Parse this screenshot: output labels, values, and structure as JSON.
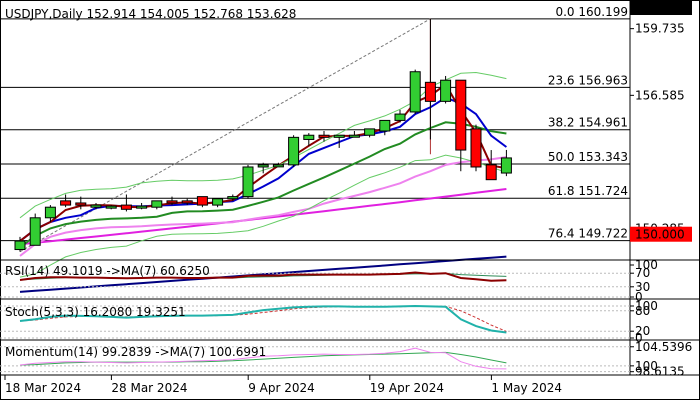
{
  "chart_data": {
    "type": "candlestick",
    "title": "USDJPY,Daily  152.914 154.005 152.768 153.628",
    "instrument": "USDJPY",
    "timeframe": "Daily",
    "last_ohlc": {
      "open": 152.914,
      "high": 154.005,
      "low": 152.768,
      "close": 153.628
    },
    "price_axis": {
      "range": [
        148.9,
        160.9
      ],
      "ticks": [
        "159.735",
        "156.585",
        "150.285"
      ]
    },
    "last_price_label": "153.628",
    "marked_level_label": "150.000",
    "dates": [
      "18 Mar 2024",
      "28 Mar 2024",
      "9 Apr 2024",
      "19 Apr 2024",
      "1 May 2024"
    ],
    "candles": [
      {
        "o": 149.3,
        "h": 149.9,
        "l": 149.2,
        "c": 149.7
      },
      {
        "o": 149.5,
        "h": 151.0,
        "l": 149.5,
        "c": 150.8
      },
      {
        "o": 150.8,
        "h": 151.4,
        "l": 150.6,
        "c": 151.3
      },
      {
        "o": 151.6,
        "h": 151.9,
        "l": 151.3,
        "c": 151.4
      },
      {
        "o": 151.5,
        "h": 151.8,
        "l": 151.2,
        "c": 151.4
      },
      {
        "o": 151.3,
        "h": 151.5,
        "l": 151.2,
        "c": 151.4
      },
      {
        "o": 151.3,
        "h": 151.4,
        "l": 151.2,
        "c": 151.35
      },
      {
        "o": 151.4,
        "h": 151.9,
        "l": 151.1,
        "c": 151.2
      },
      {
        "o": 151.3,
        "h": 151.5,
        "l": 151.2,
        "c": 151.35
      },
      {
        "o": 151.3,
        "h": 151.6,
        "l": 151.2,
        "c": 151.6
      },
      {
        "o": 151.6,
        "h": 151.8,
        "l": 151.4,
        "c": 151.5
      },
      {
        "o": 151.6,
        "h": 151.7,
        "l": 151.4,
        "c": 151.5
      },
      {
        "o": 151.8,
        "h": 151.8,
        "l": 151.3,
        "c": 151.4
      },
      {
        "o": 151.4,
        "h": 151.7,
        "l": 151.3,
        "c": 151.7
      },
      {
        "o": 151.7,
        "h": 151.9,
        "l": 151.6,
        "c": 151.8
      },
      {
        "o": 151.8,
        "h": 153.3,
        "l": 151.7,
        "c": 153.2
      },
      {
        "o": 153.2,
        "h": 153.4,
        "l": 152.9,
        "c": 153.3
      },
      {
        "o": 153.3,
        "h": 153.4,
        "l": 153.2,
        "c": 153.3
      },
      {
        "o": 153.3,
        "h": 154.7,
        "l": 153.2,
        "c": 154.6
      },
      {
        "o": 154.5,
        "h": 154.8,
        "l": 154.2,
        "c": 154.7
      },
      {
        "o": 154.7,
        "h": 154.9,
        "l": 154.4,
        "c": 154.6
      },
      {
        "o": 154.6,
        "h": 154.7,
        "l": 154.1,
        "c": 154.7
      },
      {
        "o": 154.7,
        "h": 154.9,
        "l": 154.6,
        "c": 154.7
      },
      {
        "o": 154.7,
        "h": 155.0,
        "l": 154.6,
        "c": 155.0
      },
      {
        "o": 154.9,
        "h": 155.3,
        "l": 154.7,
        "c": 155.4
      },
      {
        "o": 155.4,
        "h": 155.9,
        "l": 155.3,
        "c": 155.7
      },
      {
        "o": 155.8,
        "h": 157.8,
        "l": 155.7,
        "c": 157.7
      },
      {
        "o": 157.2,
        "h": 160.2,
        "l": 154.5,
        "c": 156.3
      },
      {
        "o": 156.3,
        "h": 157.5,
        "l": 156.2,
        "c": 157.3
      },
      {
        "o": 157.3,
        "h": 157.2,
        "l": 153.0,
        "c": 154.0
      },
      {
        "o": 155.0,
        "h": 155.2,
        "l": 153.0,
        "c": 153.2
      },
      {
        "o": 153.3,
        "h": 154.0,
        "l": 152.7,
        "c": 152.6
      },
      {
        "o": 152.914,
        "h": 154.005,
        "l": 152.768,
        "c": 153.628
      }
    ],
    "fibonacci": [
      {
        "label": "0.0 160.199",
        "level": 160.199
      },
      {
        "label": "23.6 156.963",
        "level": 156.963
      },
      {
        "label": "38.2 154.961",
        "level": 154.961
      },
      {
        "label": "50.0 153.343",
        "level": 153.343
      },
      {
        "label": "61.8 151.724",
        "level": 151.724
      },
      {
        "label": "76.4 149.722",
        "level": 149.722
      }
    ],
    "colors": {
      "bull": "#32cd32",
      "bear": "#ff0000",
      "ma_dark_red": "#8b0000",
      "ma_blue": "#0000cd",
      "ma_green": "#228b22",
      "ma_pink": "#ee82ee",
      "ma_magenta": "#e020e0",
      "ma_navy": "#000080",
      "bollinger": "#66cc66",
      "fib_line": "#000000",
      "last_label_bg": "#000000",
      "marked_level_bg": "#ff0000"
    },
    "panels": [
      {
        "name": "RSI",
        "label": "RSI(14) 49.1019  ->MA(7) 60.6250",
        "ticks": [
          "100",
          "70",
          "30",
          "0"
        ],
        "range": [
          0,
          100
        ],
        "rsi": [
          50,
          56,
          58,
          58,
          57,
          57,
          56,
          55,
          56,
          57,
          57,
          56,
          56,
          57,
          57,
          62,
          63,
          63,
          66,
          66,
          66,
          66,
          66,
          66,
          67,
          68,
          72,
          68,
          70,
          56,
          52,
          48,
          49.1019
        ],
        "ma": [
          50,
          53,
          55,
          57,
          57,
          57,
          57,
          56,
          56,
          56,
          56,
          56,
          56,
          56,
          56,
          58,
          59,
          60,
          62,
          63,
          64,
          65,
          65,
          66,
          66,
          67,
          68,
          68,
          69,
          66,
          64,
          62,
          60.625
        ]
      },
      {
        "name": "Stoch",
        "label": "Stoch(5,3,3) 16.2080 19.3251",
        "ticks": [
          "100",
          "80",
          "20",
          "0"
        ],
        "range": [
          0,
          100
        ],
        "k": [
          50,
          55,
          62,
          66,
          65,
          64,
          62,
          60,
          62,
          64,
          65,
          66,
          66,
          67,
          68,
          75,
          82,
          86,
          90,
          92,
          93,
          93,
          92,
          92,
          92,
          93,
          94,
          93,
          92,
          55,
          35,
          22,
          16.208
        ],
        "d": [
          50,
          53,
          58,
          62,
          64,
          64,
          63,
          62,
          62,
          63,
          64,
          65,
          66,
          66,
          67,
          70,
          75,
          80,
          86,
          89,
          91,
          92,
          92,
          92,
          92,
          92,
          93,
          93,
          93,
          80,
          60,
          38,
          19.3251
        ]
      },
      {
        "name": "Momentum",
        "label": "Momentum(14) 99.2839  ->MA(7) 100.6991",
        "ticks": [
          "104.5396",
          "100",
          "98.6135"
        ],
        "range": [
          98.3,
          105.2
        ],
        "mom": [
          100.2,
          100.6,
          100.8,
          101.0,
          101.0,
          100.9,
          100.8,
          100.7,
          100.8,
          100.9,
          101.0,
          101.1,
          101.2,
          101.3,
          101.5,
          101.9,
          102.3,
          102.4,
          102.6,
          102.7,
          102.8,
          102.7,
          102.7,
          102.8,
          103.0,
          103.4,
          104.2,
          103.2,
          103.1,
          101.0,
          99.9,
          99.3,
          99.2839
        ],
        "ma": [
          100.2,
          100.3,
          100.5,
          100.7,
          100.8,
          100.9,
          100.9,
          100.9,
          100.9,
          100.9,
          100.9,
          101.0,
          101.0,
          101.1,
          101.2,
          101.4,
          101.6,
          101.8,
          102.0,
          102.2,
          102.4,
          102.5,
          102.6,
          102.7,
          102.8,
          102.9,
          103.0,
          103.1,
          103.2,
          102.7,
          102.1,
          101.4,
          100.6991
        ]
      }
    ]
  }
}
